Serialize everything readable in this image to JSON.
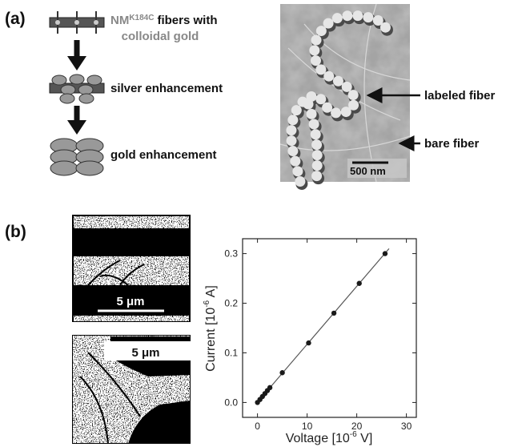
{
  "panel_a": {
    "label": "(a)",
    "step_1": {
      "prefix": "NM",
      "superscript": "K184C",
      "suffix": "fibers with",
      "line_2": "colloidal gold"
    },
    "step_2": "silver enhancement",
    "step_3": "gold enhancement",
    "image": {
      "arrow_1": "labeled fiber",
      "arrow_2": "bare fiber",
      "scale_bar": "500 nm"
    }
  },
  "panel_b": {
    "label": "(b)",
    "image_1": {
      "scale_bar": "5 μm"
    },
    "image_2": {
      "scale_bar": "5 μm"
    }
  },
  "chart_data": {
    "type": "scatter",
    "x_label": {
      "text": "Voltage  [10",
      "exponent": "-6",
      "unit": " V]"
    },
    "y_label": {
      "text": "Current  [10",
      "exponent": "-6",
      "unit": " A]"
    },
    "series": [
      {
        "type": "scatter",
        "color": "#1a1a1a",
        "x": [
          0,
          0.5,
          1,
          1.5,
          2,
          2.5,
          5,
          10.3,
          15.4,
          20.5,
          25.7
        ],
        "values": [
          0,
          0.006,
          0.012,
          0.018,
          0.024,
          0.03,
          0.06,
          0.12,
          0.18,
          0.24,
          0.3
        ]
      },
      {
        "type": "line",
        "color": "#555555",
        "x": [
          -0.3,
          26.5
        ],
        "values": [
          -0.003,
          0.31
        ]
      }
    ],
    "xlim": [
      -3,
      32
    ],
    "ylim": [
      -0.03,
      0.33
    ],
    "xticks": [
      0,
      10,
      20,
      30
    ],
    "yticks": [
      {
        "value": 0,
        "label": "0.0"
      },
      {
        "value": 0.1,
        "label": "0.1"
      },
      {
        "value": 0.2,
        "label": "0.2"
      },
      {
        "value": 0.3,
        "label": "0.3"
      }
    ]
  }
}
